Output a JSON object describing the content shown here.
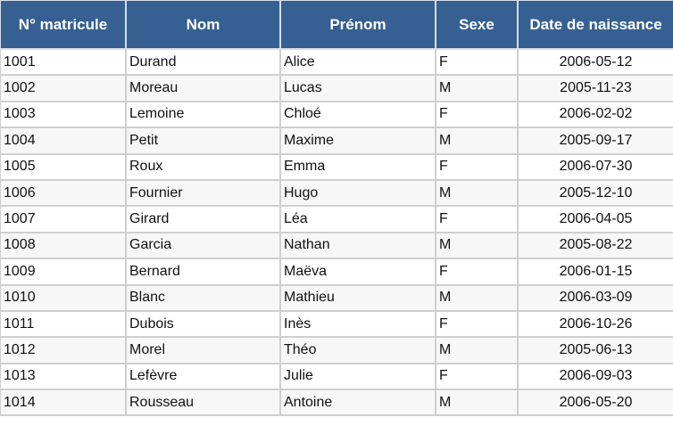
{
  "colors": {
    "header_bg": "#366092",
    "header_text": "#ffffff",
    "row_alt": "#f7f7f7",
    "grid": "#cfcfcf"
  },
  "table": {
    "headers": [
      "N° matricule",
      "Nom",
      "Prénom",
      "Sexe",
      "Date de naissance"
    ],
    "rows": [
      [
        "1001",
        "Durand",
        "Alice",
        "F",
        "2006-05-12"
      ],
      [
        "1002",
        "Moreau",
        "Lucas",
        "M",
        "2005-11-23"
      ],
      [
        "1003",
        "Lemoine",
        "Chloé",
        "F",
        "2006-02-02"
      ],
      [
        "1004",
        "Petit",
        "Maxime",
        "M",
        "2005-09-17"
      ],
      [
        "1005",
        "Roux",
        "Emma",
        "F",
        "2006-07-30"
      ],
      [
        "1006",
        "Fournier",
        "Hugo",
        "M",
        "2005-12-10"
      ],
      [
        "1007",
        "Girard",
        "Léa",
        "F",
        "2006-04-05"
      ],
      [
        "1008",
        "Garcia",
        "Nathan",
        "M",
        "2005-08-22"
      ],
      [
        "1009",
        "Bernard",
        "Maëva",
        "F",
        "2006-01-15"
      ],
      [
        "1010",
        "Blanc",
        "Mathieu",
        "M",
        "2006-03-09"
      ],
      [
        "1011",
        "Dubois",
        "Inès",
        "F",
        "2006-10-26"
      ],
      [
        "1012",
        "Morel",
        "Théo",
        "M",
        "2005-06-13"
      ],
      [
        "1013",
        "Lefèvre",
        "Julie",
        "F",
        "2006-09-03"
      ],
      [
        "1014",
        "Rousseau",
        "Antoine",
        "M",
        "2006-05-20"
      ]
    ]
  }
}
